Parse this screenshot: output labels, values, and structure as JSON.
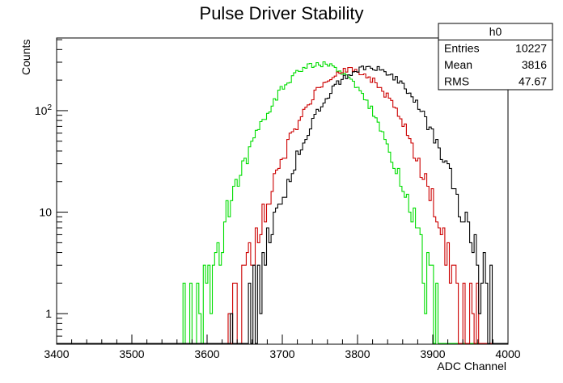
{
  "chart_data": {
    "type": "histogram",
    "title": "Pulse Driver Stability",
    "xlabel": "ADC Channel",
    "ylabel": "Counts",
    "xlim": [
      3400,
      4000
    ],
    "ylim": [
      0.5,
      520
    ],
    "log_y": true,
    "grid": false,
    "x_ticks": [
      {
        "value": 3400,
        "label": "3400"
      },
      {
        "value": 3500,
        "label": "3500"
      },
      {
        "value": 3600,
        "label": "3600"
      },
      {
        "value": 3700,
        "label": "3700"
      },
      {
        "value": 3800,
        "label": "3800"
      },
      {
        "value": 3900,
        "label": "3900"
      },
      {
        "value": 4000,
        "label": "4000"
      }
    ],
    "y_ticks": [
      {
        "value": 1,
        "label": "1",
        "sup": ""
      },
      {
        "value": 10,
        "label": "10",
        "sup": ""
      },
      {
        "value": 100,
        "label": "10",
        "sup": "2"
      }
    ],
    "stats_box": {
      "title": "h0",
      "rows": [
        {
          "label": "Entries",
          "value": "10227"
        },
        {
          "label": "Mean",
          "value": "3816"
        },
        {
          "label": "RMS",
          "value": "47.67"
        }
      ],
      "placement": "top-right"
    },
    "series": [
      {
        "color": "#00dd00",
        "mean": 3750,
        "sigma": 47,
        "peak": 290,
        "seed": 11
      },
      {
        "color": "#cc0000",
        "mean": 3790,
        "sigma": 45,
        "peak": 250,
        "seed": 23
      },
      {
        "color": "#000000",
        "mean": 3816,
        "sigma": 48,
        "peak": 270,
        "seed": 37
      }
    ]
  }
}
